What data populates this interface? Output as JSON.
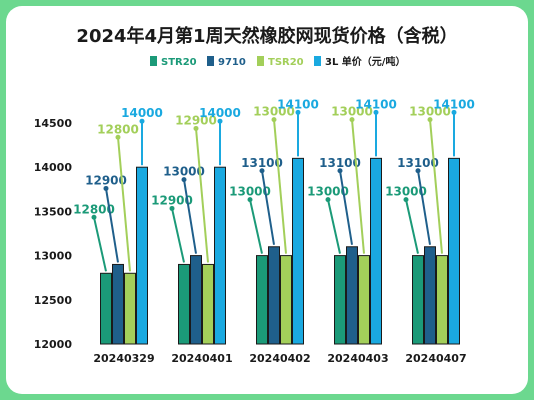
{
  "colors": {
    "background": "#6cd88f",
    "panel": "#ffffff",
    "STR20": "#1b9a78",
    "9710": "#1f5f8b",
    "TSR20": "#a3cf5a",
    "3L": "#1aa9e0",
    "text": "#1a1a1a"
  },
  "chart_data": {
    "type": "bar",
    "title": "2024年4月第1周天然橡胶网现货价格（含税）",
    "categories": [
      "20240329",
      "20240401",
      "20240402",
      "20240403",
      "20240407"
    ],
    "series": [
      {
        "name": "STR20",
        "values": [
          12800,
          12900,
          13000,
          13000,
          13000
        ]
      },
      {
        "name": "9710",
        "values": [
          12900,
          13000,
          13100,
          13100,
          13100
        ]
      },
      {
        "name": "TSR20",
        "values": [
          12800,
          12900,
          13000,
          13000,
          13000
        ]
      },
      {
        "name": "3L",
        "values": [
          14000,
          14000,
          14100,
          14100,
          14100
        ]
      }
    ],
    "unit_label": "单价（元/吨）",
    "ylim": [
      12000,
      14500
    ],
    "yticks": [
      12000,
      12500,
      13000,
      13500,
      14000,
      14500
    ],
    "xlabel": "",
    "ylabel": "",
    "grid": false,
    "legend": "top",
    "data_labels": true
  }
}
